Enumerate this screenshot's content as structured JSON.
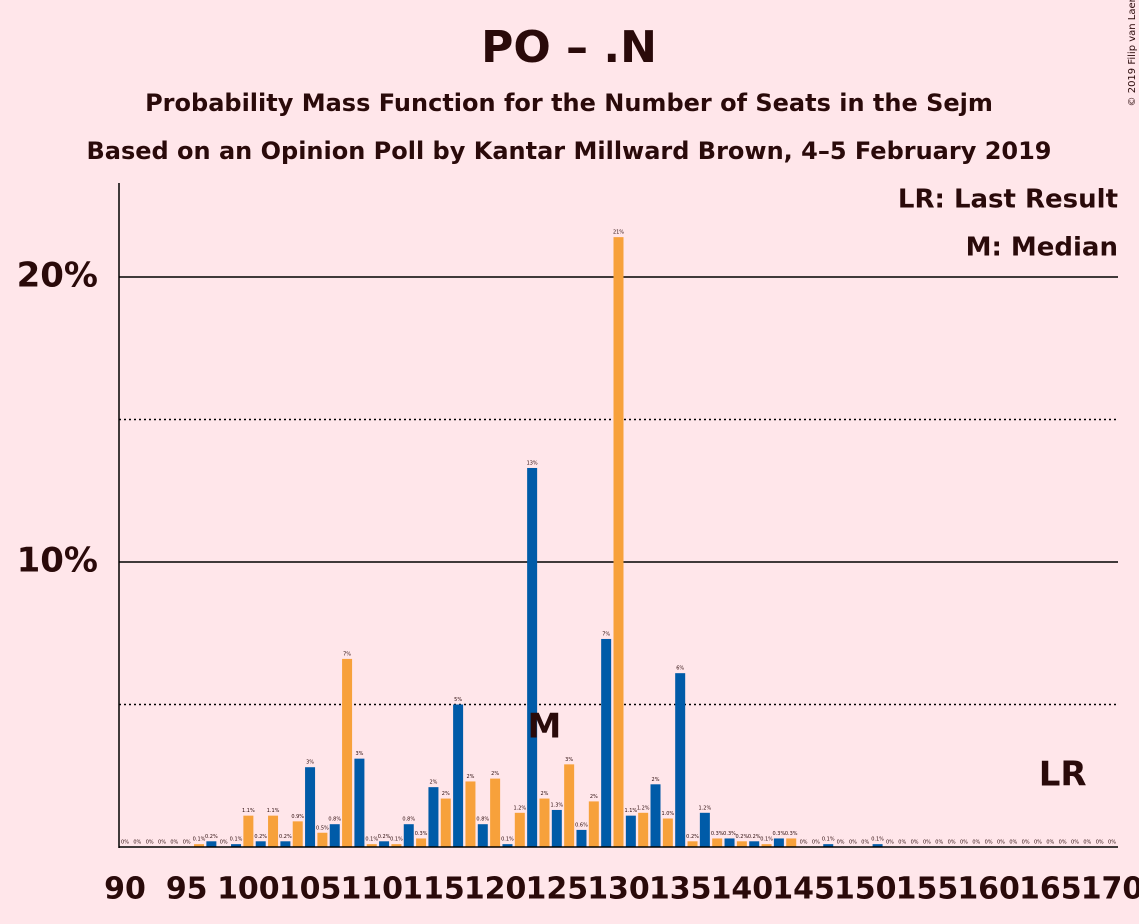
{
  "chart_data": {
    "type": "bar",
    "title": "PO – .N",
    "subtitle": "Probability Mass Function for the Number of Seats in the Sejm",
    "subtitle2": "Based on an Opinion Poll by Kantar Millward Brown, 4–5 February 2019",
    "copyright": "© 2019 Filip van Laenen",
    "legend_lr": "LR: Last Result",
    "legend_median": "M: Median",
    "xlim": [
      90,
      170
    ],
    "xticks": [
      90,
      95,
      100,
      105,
      110,
      115,
      120,
      125,
      130,
      135,
      140,
      145,
      150,
      155,
      160,
      165,
      170
    ],
    "x": [
      90,
      91,
      92,
      93,
      94,
      95,
      96,
      97,
      98,
      99,
      100,
      101,
      102,
      103,
      104,
      105,
      106,
      107,
      108,
      109,
      110,
      111,
      112,
      113,
      114,
      115,
      116,
      117,
      118,
      119,
      120,
      121,
      122,
      123,
      124,
      125,
      126,
      127,
      128,
      129,
      130,
      131,
      132,
      133,
      134,
      135,
      136,
      137,
      138,
      139,
      140,
      141,
      142,
      143,
      144,
      145,
      146,
      147,
      148,
      149,
      150,
      151,
      152,
      153,
      154,
      155,
      156,
      157,
      158,
      159,
      160,
      161,
      162,
      163,
      164,
      165,
      166,
      167,
      168,
      169,
      170
    ],
    "values": [
      0,
      0,
      0,
      0,
      0,
      0,
      0.1,
      0.2,
      0,
      0.1,
      1.1,
      0.2,
      1.1,
      0.2,
      0.9,
      2.8,
      0.5,
      0.8,
      6.6,
      3.1,
      0.1,
      0.2,
      0.1,
      0.8,
      0.3,
      2.1,
      1.7,
      5.0,
      2.3,
      0.8,
      2.4,
      0.1,
      1.2,
      13.3,
      1.7,
      1.3,
      2.9,
      0.6,
      1.6,
      7.3,
      21.4,
      1.1,
      1.2,
      2.2,
      1.0,
      6.1,
      0.2,
      1.2,
      0.3,
      0.3,
      0.2,
      0.2,
      0.1,
      0.3,
      0.3,
      0,
      0,
      0.1,
      0,
      0,
      0,
      0.1,
      0,
      0,
      0,
      0,
      0,
      0,
      0,
      0,
      0,
      0,
      0,
      0,
      0,
      0,
      0,
      0,
      0,
      0,
      0
    ],
    "value_labels": [
      "0%",
      "0%",
      "0%",
      "0%",
      "0%",
      "0%",
      "0.1%",
      "0.2%",
      "0%",
      "0.1%",
      "1.1%",
      "0.2%",
      "1.1%",
      "0.2%",
      "0.9%",
      "3%",
      "0.5%",
      "0.8%",
      "7%",
      "3%",
      "0.1%",
      "0.2%",
      "0.1%",
      "0.8%",
      "0.3%",
      "2%",
      "2%",
      "5%",
      "2%",
      "0.8%",
      "2%",
      "0.1%",
      "1.2%",
      "13%",
      "2%",
      "1.3%",
      "3%",
      "0.6%",
      "2%",
      "7%",
      "21%",
      "1.1%",
      "1.2%",
      "2%",
      "1.0%",
      "6%",
      "0.2%",
      "1.2%",
      "0.3%",
      "0.3%",
      "0.2%",
      "0.2%",
      "0.1%",
      "0.3%",
      "0.3%",
      "0%",
      "0%",
      "0.1%",
      "0%",
      "0%",
      "0%",
      "0.1%",
      "0%",
      "0%",
      "0%",
      "0%",
      "0%",
      "0%",
      "0%",
      "0%",
      "0%",
      "0%",
      "0%",
      "0%",
      "0%",
      "0%",
      "0%",
      "0%",
      "0%",
      "0%",
      "0%"
    ],
    "bar_colors": [
      "#f7a13b",
      "#005ba8"
    ],
    "ylim": [
      0,
      23.3
    ],
    "yticks": [
      {
        "value": 10,
        "label": "10%"
      },
      {
        "value": 20,
        "label": "20%"
      }
    ],
    "minor_yticks": [
      5,
      15
    ],
    "median": 124,
    "median_label": "M",
    "last_result": 166,
    "last_result_label": "LR"
  }
}
